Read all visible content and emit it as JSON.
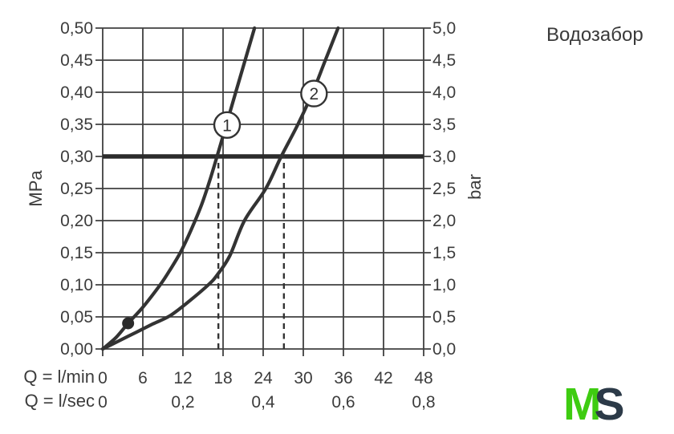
{
  "annotations": {
    "title": "Водозабор"
  },
  "logo": {
    "m": "M",
    "s": "S"
  },
  "colors": {
    "ink": "#3c3c3c",
    "grid": "#404040",
    "curve": "#333333",
    "reference_line": "#2b2b2b",
    "badge_fill": "#ffffff",
    "dot": "#2b2b2b",
    "logo_green": "#3ecc11",
    "logo_dark": "#2c3a48",
    "background": "#ffffff"
  },
  "chart_data": {
    "type": "line",
    "title": "Водозабор",
    "x_axis": {
      "row1_label": "Q = l/min",
      "row2_label": "Q = l/sec",
      "range_lmin": [
        0,
        48
      ],
      "grid_step_lmin": 6,
      "row1_ticks": [
        {
          "q": 0,
          "t": "0"
        },
        {
          "q": 6,
          "t": "6"
        },
        {
          "q": 12,
          "t": "12"
        },
        {
          "q": 18,
          "t": "18"
        },
        {
          "q": 24,
          "t": "24"
        },
        {
          "q": 30,
          "t": "30"
        },
        {
          "q": 36,
          "t": "36"
        },
        {
          "q": 42,
          "t": "42"
        },
        {
          "q": 48,
          "t": "48"
        }
      ],
      "row2_ticks": [
        {
          "q": 0,
          "t": "0"
        },
        {
          "q": 12,
          "t": "0,2"
        },
        {
          "q": 24,
          "t": "0,4"
        },
        {
          "q": 36,
          "t": "0,6"
        },
        {
          "q": 48,
          "t": "0,8"
        }
      ]
    },
    "y_axis_left": {
      "label": "MPa",
      "range": [
        0,
        0.5
      ],
      "ticks": [
        {
          "p": 0,
          "t": "0,00"
        },
        {
          "p": 0.05,
          "t": "0,05"
        },
        {
          "p": 0.1,
          "t": "0,10"
        },
        {
          "p": 0.15,
          "t": "0,15"
        },
        {
          "p": 0.2,
          "t": "0,20"
        },
        {
          "p": 0.25,
          "t": "0,25"
        },
        {
          "p": 0.3,
          "t": "0,30"
        },
        {
          "p": 0.35,
          "t": "0,35"
        },
        {
          "p": 0.4,
          "t": "0,40"
        },
        {
          "p": 0.45,
          "t": "0,45"
        },
        {
          "p": 0.5,
          "t": "0,50"
        }
      ]
    },
    "y_axis_right": {
      "label": "bar",
      "range": [
        0,
        5
      ],
      "ticks": [
        {
          "p": 0,
          "t": "0,0"
        },
        {
          "p": 0.05,
          "t": "0,5"
        },
        {
          "p": 0.1,
          "t": "1,0"
        },
        {
          "p": 0.15,
          "t": "1,5"
        },
        {
          "p": 0.2,
          "t": "2,0"
        },
        {
          "p": 0.25,
          "t": "2,5"
        },
        {
          "p": 0.3,
          "t": "3,0"
        },
        {
          "p": 0.35,
          "t": "3,5"
        },
        {
          "p": 0.4,
          "t": "4,0"
        },
        {
          "p": 0.45,
          "t": "4,5"
        },
        {
          "p": 0.5,
          "t": "5,0"
        }
      ]
    },
    "series": [
      {
        "name": "1",
        "badge_at": [
          18.6,
          0.349
        ],
        "points_lmin_mpa": [
          [
            0,
            0
          ],
          [
            2,
            0.018
          ],
          [
            3.8,
            0.04
          ],
          [
            6,
            0.065
          ],
          [
            8.6,
            0.1
          ],
          [
            10,
            0.122
          ],
          [
            11.6,
            0.15
          ],
          [
            13.2,
            0.185
          ],
          [
            14.8,
            0.225
          ],
          [
            16,
            0.262
          ],
          [
            17.1,
            0.3
          ],
          [
            18.5,
            0.35
          ],
          [
            19.9,
            0.4
          ],
          [
            21.3,
            0.45
          ],
          [
            22.7,
            0.5
          ]
        ]
      },
      {
        "name": "2",
        "badge_at": [
          31.6,
          0.398
        ],
        "points_lmin_mpa": [
          [
            0,
            0
          ],
          [
            2.5,
            0.013
          ],
          [
            5,
            0.026
          ],
          [
            7.5,
            0.039
          ],
          [
            10.1,
            0.052
          ],
          [
            13,
            0.075
          ],
          [
            15.8,
            0.1
          ],
          [
            17.1,
            0.115
          ],
          [
            19,
            0.145
          ],
          [
            21.2,
            0.2
          ],
          [
            24.4,
            0.25
          ],
          [
            26.7,
            0.3
          ],
          [
            29.2,
            0.35
          ],
          [
            31.4,
            0.4
          ],
          [
            33.3,
            0.45
          ],
          [
            35.2,
            0.5
          ]
        ]
      }
    ],
    "reference_line_mpa": 0.3,
    "dashed_guides_lmin": [
      17.3,
      27.1
    ],
    "marker_dot_lmin_mpa": [
      3.8,
      0.04
    ]
  }
}
